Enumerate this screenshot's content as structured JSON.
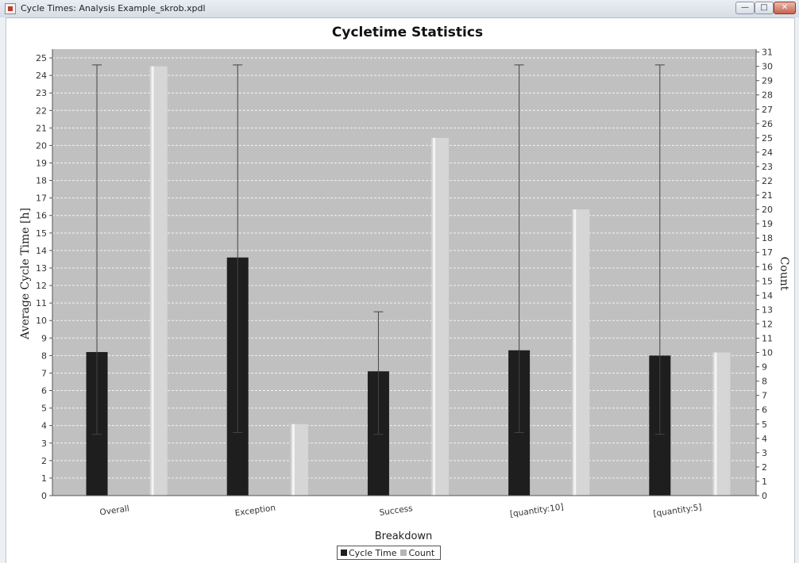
{
  "window": {
    "title": "Cycle Times: Analysis Example_skrob.xpdl",
    "buttons": {
      "minimize": "—",
      "maximize": "□",
      "close": "✕"
    }
  },
  "chart_data": {
    "type": "bar",
    "title": "Cycletime Statistics",
    "xlabel": "Breakdown",
    "ylabel": "Average Cycle Time [h]",
    "y2label": "Count",
    "categories": [
      "Overall",
      "Exception",
      "Success",
      "[quantity:10]",
      "[quantity:5]"
    ],
    "ylim": [
      0,
      25.5
    ],
    "y2lim": [
      0,
      31.2
    ],
    "grid": true,
    "legend_position": "bottom",
    "series": [
      {
        "name": "Cycle Time",
        "axis": "left",
        "color": "#1e1e1e",
        "values": [
          8.2,
          13.6,
          7.1,
          8.3,
          8.0
        ],
        "error_low": [
          3.5,
          3.6,
          3.5,
          3.6,
          3.5
        ],
        "error_high": [
          24.6,
          24.6,
          10.5,
          24.6,
          24.6
        ]
      },
      {
        "name": "Count",
        "axis": "right",
        "color": "#d6d6d6",
        "values": [
          30,
          5,
          25,
          20,
          10
        ]
      }
    ],
    "yticks": [
      0,
      1,
      2,
      3,
      4,
      5,
      6,
      7,
      8,
      9,
      10,
      11,
      12,
      13,
      14,
      15,
      16,
      17,
      18,
      19,
      20,
      21,
      22,
      23,
      24,
      25
    ],
    "y2ticks": [
      0,
      1,
      2,
      3,
      4,
      5,
      6,
      7,
      8,
      9,
      10,
      11,
      12,
      13,
      14,
      15,
      16,
      17,
      18,
      19,
      20,
      21,
      22,
      23,
      24,
      25,
      26,
      27,
      28,
      29,
      30,
      31
    ]
  }
}
